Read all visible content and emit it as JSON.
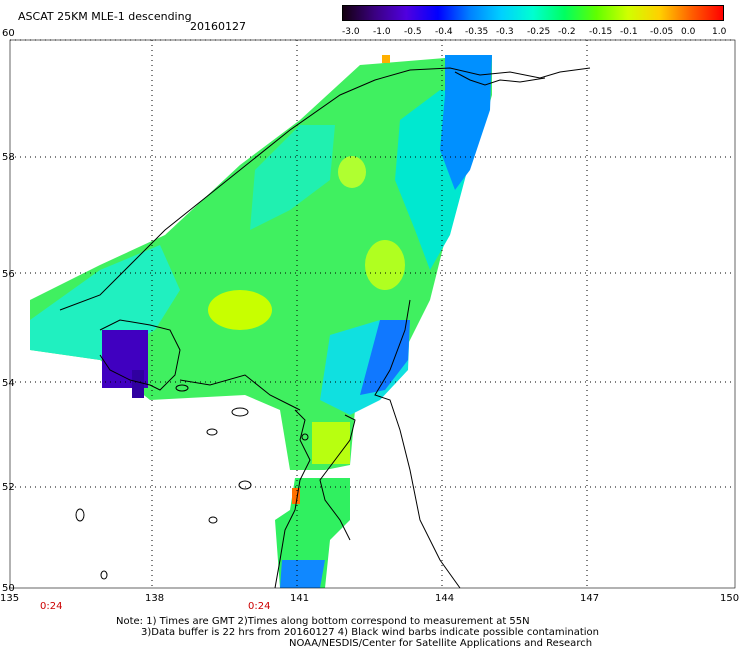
{
  "header": {
    "title": "ASCAT 25KM MLE-1 descending",
    "date": "20160127"
  },
  "colorbar": {
    "tick_labels": [
      "-3.0",
      "-1.0",
      "-0.5",
      "-0.4",
      "-0.35",
      "-0.3",
      "-0.25",
      "-0.2",
      "-0.15",
      "-0.1",
      "-0.05",
      "0.0",
      "1.0"
    ],
    "colors": [
      "#140010",
      "#3a0080",
      "#5000e0",
      "#0000ff",
      "#0080ff",
      "#00d0ff",
      "#00ffd0",
      "#00ff60",
      "#60ff00",
      "#d0ff00",
      "#ffd000",
      "#ff6000",
      "#ff0000"
    ]
  },
  "axes": {
    "lat_labels": [
      "60",
      "58",
      "56",
      "54",
      "52",
      "50"
    ],
    "lon_labels": [
      "135",
      "138",
      "141",
      "144",
      "147",
      "150"
    ],
    "time_labels": [
      "0:24",
      "0:24"
    ]
  },
  "footnotes": {
    "line1": "Note: 1) Times are GMT 2)Times along bottom correspond to measurement at 55N",
    "line2": "3)Data buffer is 22 hrs from 20160127 4) Black wind barbs indicate possible contamination",
    "line3": "NOAA/NESDIS/Center for Satellite Applications and Research"
  }
}
